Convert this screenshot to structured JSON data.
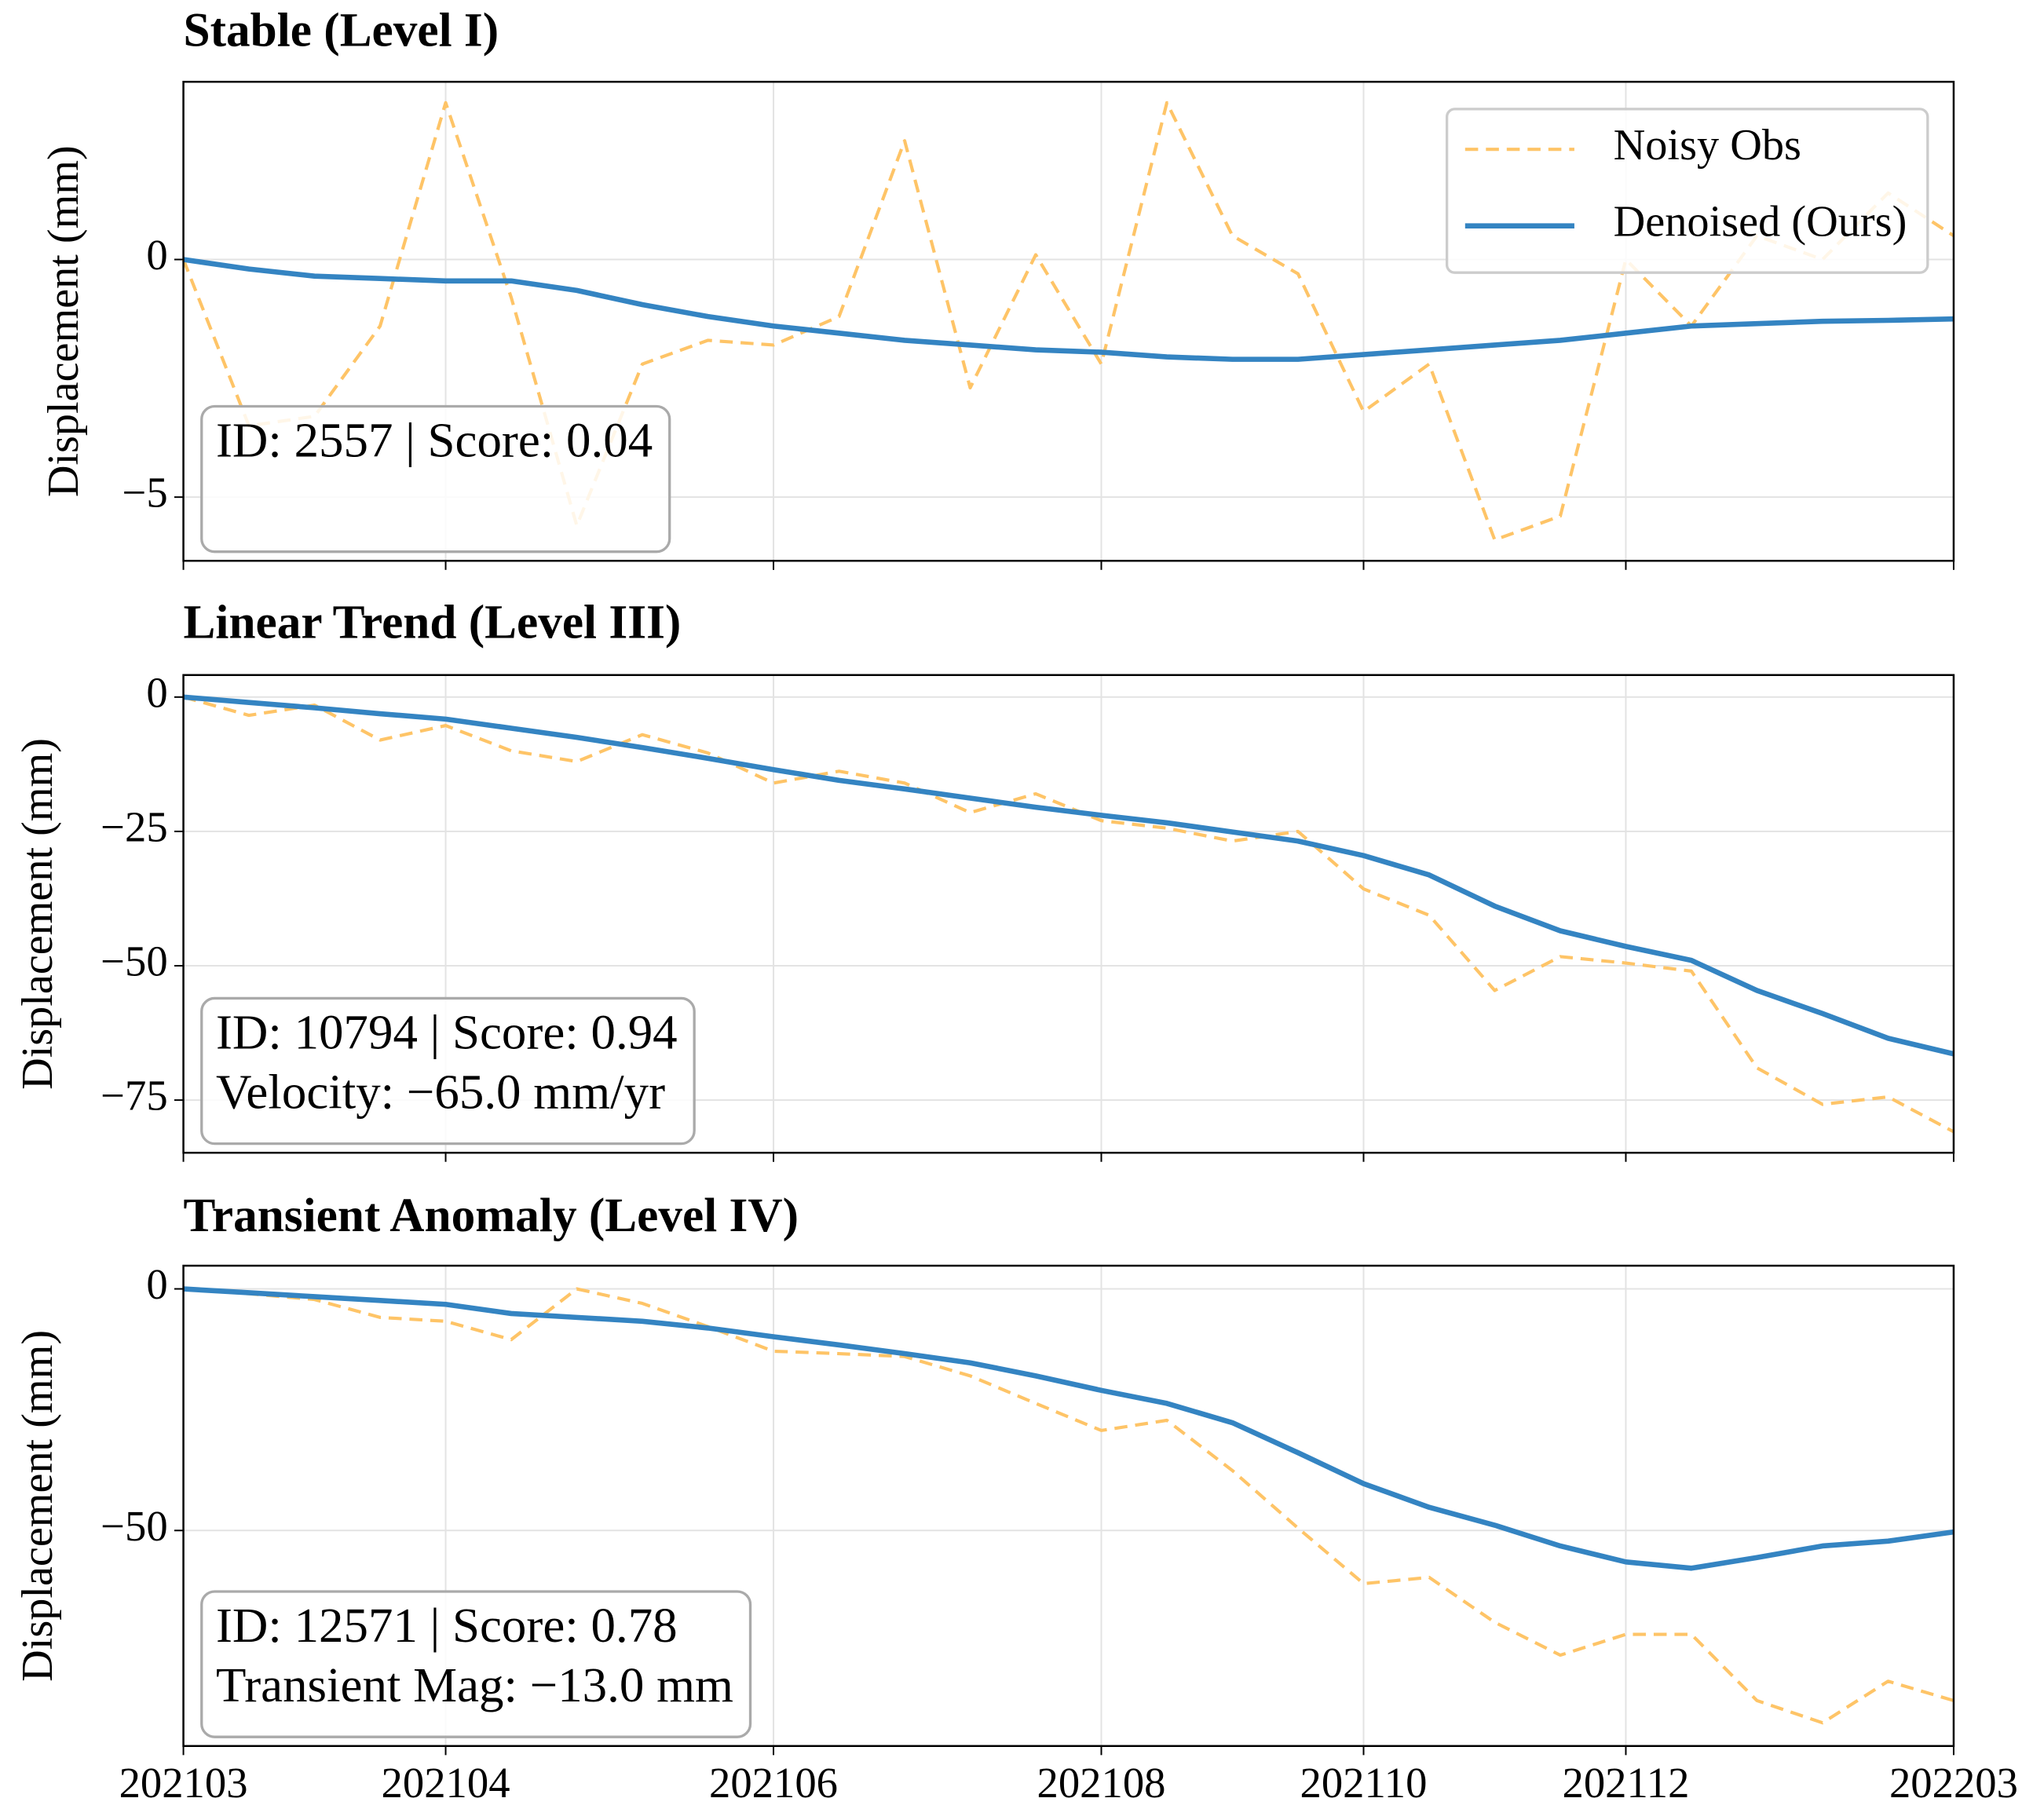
{
  "chart_data": [
    {
      "type": "line",
      "title": "Stable (Level I)",
      "ylabel": "Displacement (mm)",
      "ylim": [
        -6.34,
        3.74
      ],
      "yticks": [
        {
          "value": -5,
          "label": "−5"
        },
        0
      ],
      "grid": true,
      "legend": "upper right",
      "annotation_lines": [
        "ID: 2557 | Score: 0.04"
      ],
      "series": [
        {
          "name": "Noisy Obs",
          "color": "#fec467",
          "dashed": true,
          "values": [
            0,
            -3.5,
            -3.3,
            -1.4,
            3.3,
            -0.8,
            -5.6,
            -2.2,
            -1.7,
            -1.8,
            -1.2,
            2.5,
            -2.7,
            0.1,
            -2.2,
            3.3,
            0.5,
            -0.3,
            -3.2,
            -2.2,
            -5.9,
            -5.4,
            0,
            -1.4,
            0.5,
            0,
            1.4,
            0.5
          ]
        },
        {
          "name": "Denoised (Ours)",
          "color": "#3484c2",
          "dashed": false,
          "values": [
            0,
            -0.2,
            -0.35,
            -0.4,
            -0.45,
            -0.45,
            -0.65,
            -0.95,
            -1.2,
            -1.4,
            -1.55,
            -1.7,
            -1.8,
            -1.9,
            -1.95,
            -2.05,
            -2.1,
            -2.1,
            -2.0,
            -1.9,
            -1.8,
            -1.7,
            -1.55,
            -1.4,
            -1.35,
            -1.3,
            -1.28,
            -1.25
          ]
        }
      ]
    },
    {
      "type": "line",
      "title": "Linear Trend (Level III)",
      "ylabel": "Displacement (mm)",
      "ylim": [
        -84.8,
        4.1
      ],
      "yticks": [
        {
          "value": -75,
          "label": "−75"
        },
        {
          "value": -50,
          "label": "−50"
        },
        {
          "value": -25,
          "label": "−25"
        },
        0
      ],
      "grid": true,
      "annotation_lines": [
        "ID: 10794 | Score: 0.94",
        "Velocity: −65.0 mm/yr"
      ],
      "series": [
        {
          "color": "#fec467",
          "dashed": true,
          "values": [
            0,
            -3.4,
            -1.5,
            -8,
            -5.3,
            -10,
            -12,
            -7,
            -10.4,
            -16,
            -13.8,
            -16,
            -21.5,
            -18,
            -23,
            -24.4,
            -26.8,
            -25,
            -35.7,
            -40.6,
            -54.6,
            -48.3,
            -49.5,
            -51,
            -69,
            -75.8,
            -74.4,
            -80.9
          ]
        },
        {
          "color": "#3484c2",
          "dashed": false,
          "values": [
            0,
            -1,
            -2,
            -3.1,
            -4.1,
            -5.8,
            -7.5,
            -9.4,
            -11.4,
            -13.5,
            -15.5,
            -17.1,
            -18.8,
            -20.5,
            -22,
            -23.4,
            -25.1,
            -26.8,
            -29.5,
            -33.1,
            -38.9,
            -43.5,
            -46.4,
            -49,
            -54.6,
            -58.9,
            -63.5,
            -66.4
          ]
        }
      ]
    },
    {
      "type": "line",
      "title": "Transient Anomaly (Level IV)",
      "ylabel": "Displacement (mm)",
      "ylim": [
        -94.6,
        4.8
      ],
      "yticks": [
        {
          "value": -50,
          "label": "−50"
        },
        0
      ],
      "grid": true,
      "annotation_lines": [
        "ID: 12571 | Score: 0.78",
        "Transient Mag: −13.0 mm"
      ],
      "categories": [
        "202103",
        null,
        null,
        null,
        "202104",
        null,
        null,
        null,
        null,
        "202106",
        null,
        null,
        null,
        null,
        "202108",
        null,
        null,
        null,
        "202110",
        null,
        null,
        null,
        "202112",
        null,
        null,
        null,
        null,
        "202203"
      ],
      "series": [
        {
          "color": "#fec467",
          "dashed": true,
          "values": [
            0,
            -1,
            -2.2,
            -5.9,
            -6.7,
            -10.5,
            0,
            -3,
            -7.8,
            -12.9,
            -13.4,
            -14,
            -18,
            -23.7,
            -29.3,
            -27.2,
            -37.6,
            -49.5,
            -61,
            -59.7,
            -69,
            -75.8,
            -71.5,
            -71.5,
            -85.2,
            -89.8,
            -81.2,
            -85.2
          ]
        },
        {
          "color": "#3484c2",
          "dashed": false,
          "values": [
            0,
            -0.8,
            -1.6,
            -2.4,
            -3.2,
            -5.1,
            -5.9,
            -6.7,
            -8.1,
            -9.9,
            -11.6,
            -13.4,
            -15.3,
            -18,
            -21,
            -23.7,
            -27.7,
            -33.9,
            -40.3,
            -45.2,
            -48.9,
            -53.2,
            -56.5,
            -57.8,
            -55.6,
            -53.2,
            -52.2,
            -50.3
          ]
        }
      ]
    }
  ]
}
